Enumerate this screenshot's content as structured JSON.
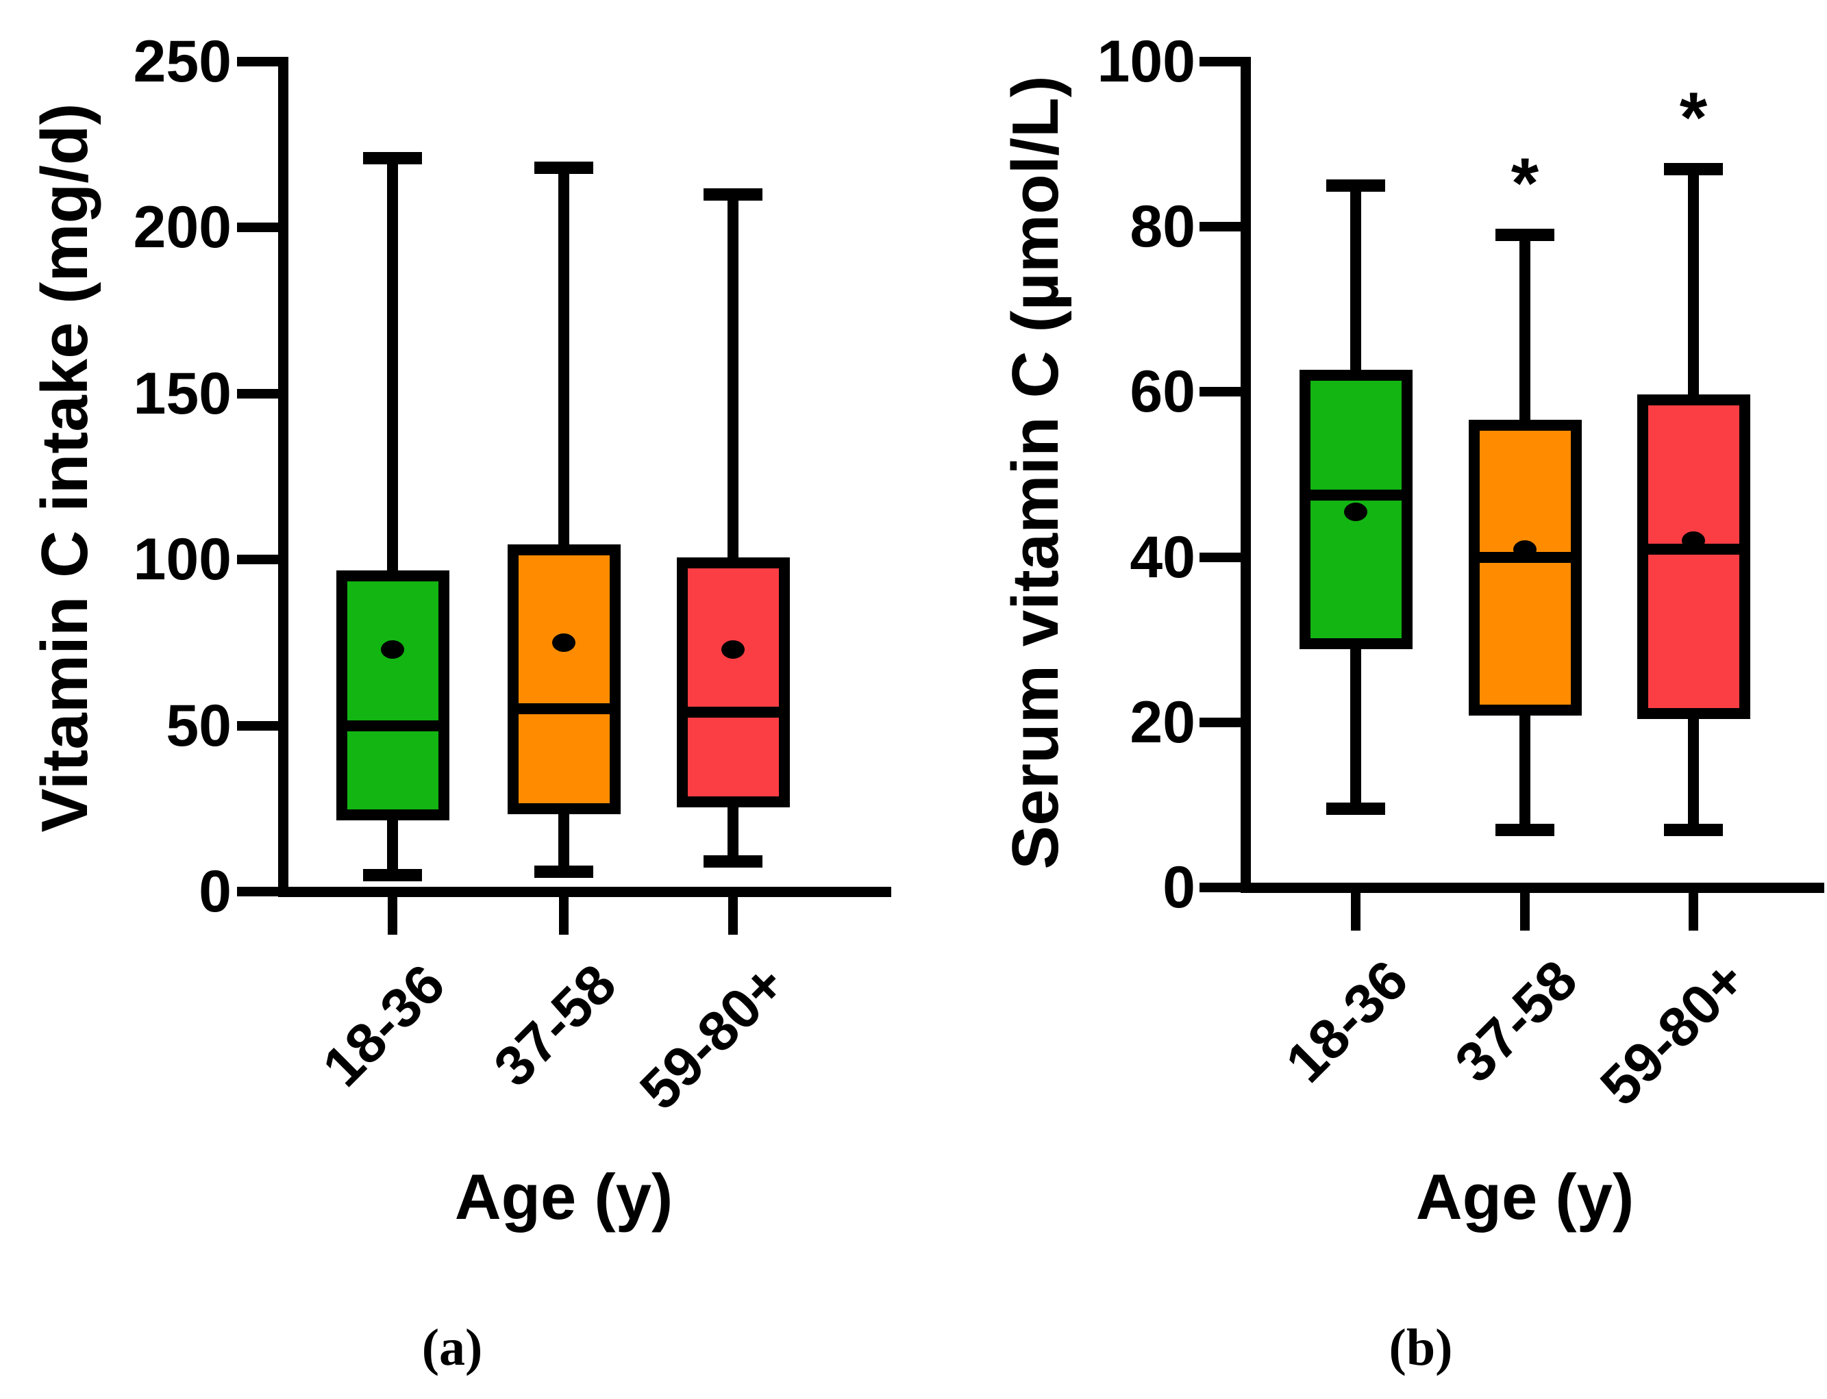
{
  "figure_type": "two-panel box plot figure",
  "panel_labels": [
    "(a)",
    "(b)"
  ],
  "chart_data": [
    {
      "type": "box",
      "panel_label": "(a)",
      "xlabel": "Age (y)",
      "ylabel": "Vitamin C intake (mg/d)",
      "ylim": [
        0,
        250
      ],
      "yticks": [
        "0",
        "50",
        "100",
        "150",
        "200",
        "250"
      ],
      "ytick_values": [
        0,
        50,
        100,
        150,
        200,
        250
      ],
      "categories": [
        "18-36",
        "37-58",
        "59-80+"
      ],
      "grid": false,
      "legend": "none",
      "series": [
        {
          "category": "18-36",
          "color": "#12B512",
          "whisker_low": 5,
          "q1": 23,
          "median": 50,
          "q3": 95,
          "whisker_high": 221,
          "mean": 73,
          "annotation": ""
        },
        {
          "category": "37-58",
          "color": "#FF8C00",
          "whisker_low": 6,
          "q1": 25,
          "median": 55,
          "q3": 103,
          "whisker_high": 218,
          "mean": 75,
          "annotation": ""
        },
        {
          "category": "59-80+",
          "color": "#FB3E44",
          "whisker_low": 9,
          "q1": 27,
          "median": 54,
          "q3": 99,
          "whisker_high": 210,
          "mean": 73,
          "annotation": ""
        }
      ]
    },
    {
      "type": "box",
      "panel_label": "(b)",
      "xlabel": "Age (y)",
      "ylabel": "Serum vitamin C (µmol/L)",
      "ylim": [
        0,
        100
      ],
      "yticks": [
        "0",
        "20",
        "40",
        "60",
        "80",
        "100"
      ],
      "ytick_values": [
        0,
        20,
        40,
        60,
        80,
        100
      ],
      "categories": [
        "18-36",
        "37-58",
        "59-80+"
      ],
      "grid": false,
      "legend": "none",
      "series": [
        {
          "category": "18-36",
          "color": "#12B512",
          "whisker_low": 9.5,
          "q1": 29.5,
          "median": 47.5,
          "q3": 62,
          "whisker_high": 85,
          "mean": 45.5,
          "annotation": ""
        },
        {
          "category": "37-58",
          "color": "#FF8C00",
          "whisker_low": 7,
          "q1": 21.5,
          "median": 40,
          "q3": 56,
          "whisker_high": 79,
          "mean": 41,
          "annotation": "*"
        },
        {
          "category": "59-80+",
          "color": "#FB3E44",
          "whisker_low": 7,
          "q1": 21,
          "median": 41,
          "q3": 59,
          "whisker_high": 87,
          "mean": 42,
          "annotation": "*"
        }
      ]
    }
  ]
}
